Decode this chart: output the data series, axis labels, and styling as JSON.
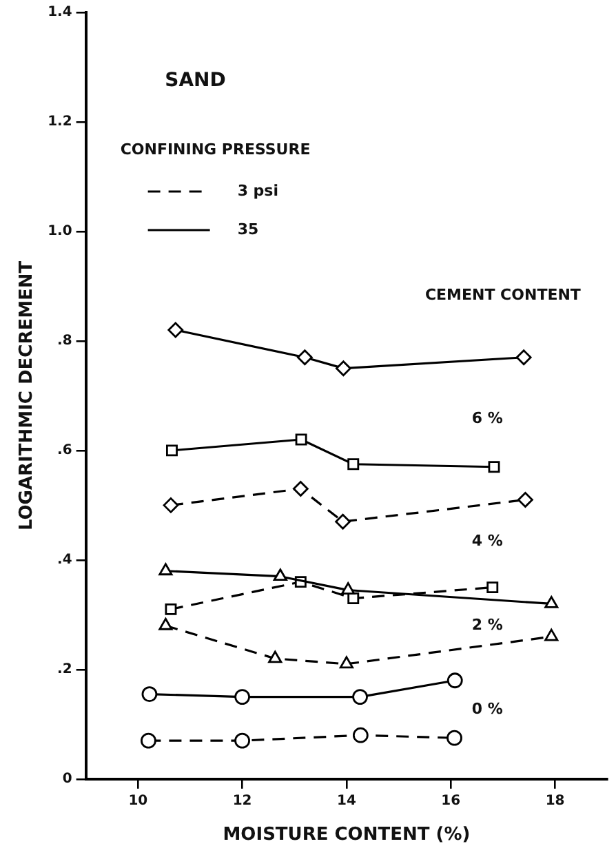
{
  "chart_data": {
    "type": "line",
    "xlabel": "MOISTURE CONTENT (%)",
    "ylabel": "LOGARITHMIC DECREMENT",
    "legend_title": "CONFINING PRESSURE",
    "legend": "top left",
    "grid": false,
    "xlim": [
      9,
      19
    ],
    "xticks": [
      10,
      12,
      14,
      16,
      18
    ],
    "ylim": [
      0,
      1.4
    ],
    "yticks": [
      0,
      {
        "value": 0.2,
        "label": ".2"
      },
      {
        "value": 0.4,
        "label": ".4"
      },
      {
        "value": 0.6,
        "label": ".6"
      },
      {
        "value": 0.8,
        "label": ".8"
      },
      {
        "value": 1.0,
        "label": "1.0"
      },
      {
        "value": 1.2,
        "label": "1.2"
      },
      {
        "value": 1.4,
        "label": "1.4"
      }
    ],
    "series": [
      {
        "name": "3 psi",
        "color": "#000000",
        "line_style": "dashed",
        "marker": "circle",
        "x": [
          10.2,
          12.0,
          14.27,
          16.07
        ],
        "values": [
          0.07,
          0.07,
          0.08,
          0.075
        ]
      },
      {
        "name": "35",
        "color": "#000000",
        "line_style": "solid",
        "marker": "circle",
        "x": [
          10.22,
          12.0,
          14.26,
          16.08
        ],
        "values": [
          0.155,
          0.15,
          0.15,
          0.18
        ]
      },
      {
        "color": "#000000",
        "line_style": "dashed",
        "marker": "triangle",
        "x": [
          10.53,
          12.63,
          14.0,
          17.93
        ],
        "values": [
          0.28,
          0.22,
          0.21,
          0.26
        ]
      },
      {
        "color": "#000000",
        "line_style": "solid",
        "marker": "triangle",
        "x": [
          10.53,
          12.73,
          14.03,
          17.93
        ],
        "values": [
          0.38,
          0.37,
          0.345,
          0.32
        ]
      },
      {
        "color": "#000000",
        "line_style": "dashed",
        "marker": "square",
        "x": [
          10.63,
          13.12,
          14.13,
          16.8
        ],
        "values": [
          0.31,
          0.36,
          0.33,
          0.35
        ]
      },
      {
        "color": "#000000",
        "line_style": "solid",
        "marker": "square",
        "x": [
          10.65,
          13.13,
          14.13,
          16.83
        ],
        "values": [
          0.6,
          0.62,
          0.575,
          0.57
        ]
      },
      {
        "color": "#000000",
        "line_style": "dashed",
        "marker": "diamond",
        "x": [
          10.63,
          13.12,
          13.93,
          17.43
        ],
        "values": [
          0.5,
          0.53,
          0.47,
          0.51
        ]
      },
      {
        "color": "#000000",
        "line_style": "solid",
        "marker": "diamond",
        "x": [
          10.72,
          13.2,
          13.94,
          17.4
        ],
        "values": [
          0.82,
          0.77,
          0.75,
          0.77
        ]
      }
    ],
    "annotations": [
      "SAND",
      "CEMENT CONTENT",
      "6 %",
      "4 %",
      "2 %",
      "0 %"
    ]
  }
}
